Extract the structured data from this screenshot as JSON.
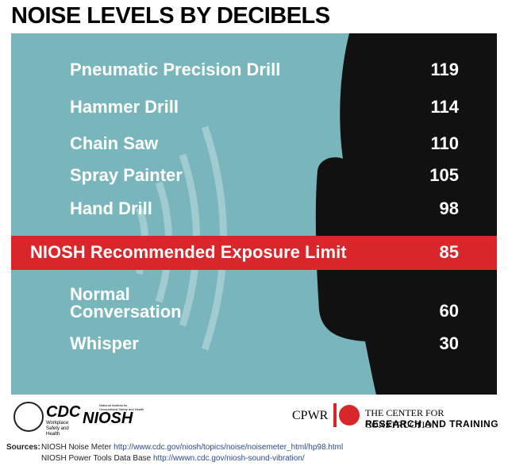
{
  "title": "NOISE LEVELS BY DECIBELS",
  "rows": [
    {
      "label": "Pneumatic Precision Drill",
      "value": 119
    },
    {
      "label": "Hammer Drill",
      "value": 114
    },
    {
      "label": "Chain Saw",
      "value": 110
    },
    {
      "label": "Spray Painter",
      "value": 105
    },
    {
      "label": "Hand Drill",
      "value": 98
    }
  ],
  "limit": {
    "label": "NIOSH Recommended Exposure Limit",
    "value": 85
  },
  "lower_rows": [
    {
      "label": "Normal Conversation",
      "value": 60
    },
    {
      "label": "Whisper",
      "value": 30
    }
  ],
  "logos": {
    "cdc": "CDC",
    "cdc_sub": "Workplace Safety and Health",
    "niosh": "NIOSH",
    "niosh_sub": "National Institute for Occupational Safety and Health",
    "cpwr": "CPWR",
    "cpwr_line1": "THE CENTER FOR CONSTRUCTION",
    "cpwr_line2": "RESEARCH AND TRAINING"
  },
  "sources": {
    "label": "Sources:",
    "items": [
      {
        "name": "NIOSH Noise Meter",
        "url": "http://www.cdc.gov/niosh/topics/noise/noisemeter_html/hp98.html"
      },
      {
        "name": "NIOSH Power Tools Data Base",
        "url": "http://wwwn.cdc.gov/niosh-sound-vibration/"
      }
    ]
  }
}
